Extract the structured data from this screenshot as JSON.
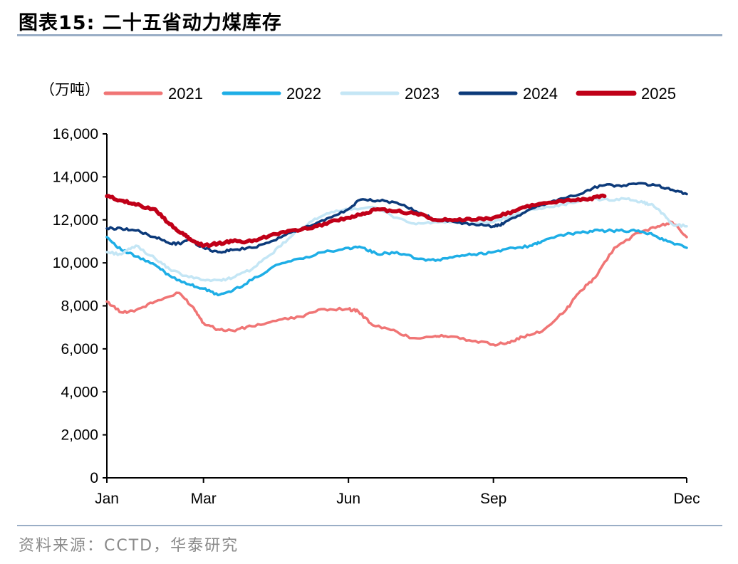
{
  "header": {
    "title": "图表15:  二十五省动力煤库存"
  },
  "footer": {
    "source": "资料来源：CCTD，华泰研究"
  },
  "chart_data": {
    "type": "line",
    "title": "二十五省动力煤库存",
    "unit": "（万吨）",
    "xlabel": "",
    "ylabel": "",
    "ylim": [
      0,
      16000
    ],
    "yticks": [
      0,
      2000,
      4000,
      6000,
      8000,
      10000,
      12000,
      14000,
      16000
    ],
    "ytick_labels": [
      "0",
      "2,000",
      "4,000",
      "6,000",
      "8,000",
      "10,000",
      "12,000",
      "14,000",
      "16,000"
    ],
    "xlim": [
      0,
      12
    ],
    "xticks": [
      0,
      2,
      5,
      8,
      12
    ],
    "xtick_labels": [
      "Jan",
      "Mar",
      "Jun",
      "Sep",
      "Dec"
    ],
    "grid": false,
    "legend_position": "top",
    "series": [
      {
        "name": "2021",
        "color": "#f07575",
        "width": 3.5,
        "x": [
          0,
          0.3,
          0.6,
          1.0,
          1.5,
          1.8,
          2.0,
          2.3,
          2.6,
          3.0,
          3.5,
          4.0,
          4.5,
          5.0,
          5.2,
          5.5,
          6.0,
          6.3,
          6.8,
          7.0,
          7.5,
          8.0,
          8.3,
          8.6,
          9.0,
          9.5,
          9.8,
          10.1,
          10.5,
          11.0,
          11.4,
          11.7,
          12.0
        ],
        "values": [
          8200,
          7700,
          7800,
          8200,
          8600,
          7900,
          7200,
          6900,
          6850,
          7050,
          7300,
          7500,
          7850,
          7850,
          7750,
          7100,
          6800,
          6500,
          6600,
          6600,
          6400,
          6200,
          6300,
          6550,
          6800,
          7800,
          8700,
          9300,
          10700,
          11400,
          11700,
          11900,
          11200
        ]
      },
      {
        "name": "2022",
        "color": "#1eaee6",
        "width": 3.5,
        "x": [
          0,
          0.3,
          0.6,
          1.0,
          1.3,
          1.7,
          2.0,
          2.3,
          2.6,
          3.0,
          3.5,
          4.0,
          4.5,
          5.0,
          5.3,
          5.6,
          6.0,
          6.4,
          6.8,
          7.2,
          7.6,
          8.0,
          8.4,
          8.8,
          9.0,
          9.4,
          9.8,
          10.2,
          10.6,
          11.0,
          11.3,
          11.6,
          12.0
        ],
        "values": [
          11200,
          10600,
          10300,
          9900,
          9400,
          9000,
          8800,
          8500,
          8700,
          9200,
          9900,
          10200,
          10500,
          10700,
          10700,
          10400,
          10500,
          10200,
          10100,
          10300,
          10400,
          10500,
          10700,
          10800,
          11000,
          11300,
          11400,
          11500,
          11500,
          11500,
          11300,
          11000,
          10700
        ]
      },
      {
        "name": "2023",
        "color": "#c4e6f5",
        "width": 3.5,
        "x": [
          0,
          0.3,
          0.6,
          1.0,
          1.3,
          1.6,
          2.0,
          2.3,
          2.6,
          3.0,
          3.4,
          3.8,
          4.2,
          4.6,
          5.0,
          5.5,
          6.0,
          6.4,
          6.8,
          7.2,
          7.6,
          8.0,
          8.4,
          8.8,
          9.2,
          9.6,
          10.0,
          10.4,
          10.8,
          11.1,
          11.3,
          11.5,
          11.7,
          12.0
        ],
        "values": [
          10500,
          10400,
          10800,
          10200,
          9700,
          9400,
          9200,
          9200,
          9300,
          9700,
          10400,
          11200,
          11900,
          12300,
          12500,
          12600,
          12100,
          11800,
          11900,
          11900,
          11800,
          11900,
          12200,
          12500,
          12600,
          12800,
          13000,
          12900,
          13000,
          12800,
          12700,
          12300,
          11800,
          11700
        ]
      },
      {
        "name": "2024",
        "color": "#0c3a7a",
        "width": 3.5,
        "x": [
          0,
          0.3,
          0.6,
          1.0,
          1.3,
          1.5,
          1.7,
          2.0,
          2.3,
          2.6,
          3.0,
          3.4,
          3.8,
          4.2,
          4.6,
          5.0,
          5.2,
          5.6,
          6.0,
          6.4,
          6.8,
          7.2,
          7.6,
          8.0,
          8.2,
          8.6,
          9.0,
          9.4,
          9.8,
          10.2,
          10.6,
          11.0,
          11.4,
          11.7,
          12.0
        ],
        "values": [
          11600,
          11600,
          11500,
          11200,
          10900,
          10900,
          11100,
          10700,
          10500,
          10600,
          10700,
          11000,
          11400,
          11700,
          12100,
          12500,
          12900,
          12900,
          12800,
          12400,
          12000,
          11900,
          11800,
          11700,
          11800,
          12300,
          12700,
          13000,
          13200,
          13600,
          13600,
          13700,
          13600,
          13400,
          13200
        ]
      },
      {
        "name": "2025",
        "color": "#c00018",
        "width": 5.5,
        "x": [
          0,
          0.3,
          0.6,
          1.0,
          1.3,
          1.6,
          1.8,
          2.0,
          2.3,
          2.6,
          3.0,
          3.4,
          3.8,
          4.2,
          4.6,
          5.0,
          5.3,
          5.6,
          6.0,
          6.4,
          6.8,
          7.2,
          7.6,
          8.0,
          8.4,
          8.8,
          9.2,
          9.6,
          10.0,
          10.3
        ],
        "values": [
          13100,
          12900,
          12700,
          12500,
          11800,
          11300,
          11000,
          10800,
          10900,
          11000,
          11000,
          11300,
          11500,
          11600,
          11900,
          12100,
          12300,
          12500,
          12400,
          12300,
          12000,
          12000,
          12000,
          12100,
          12400,
          12700,
          12800,
          12900,
          13000,
          13100
        ]
      }
    ]
  }
}
